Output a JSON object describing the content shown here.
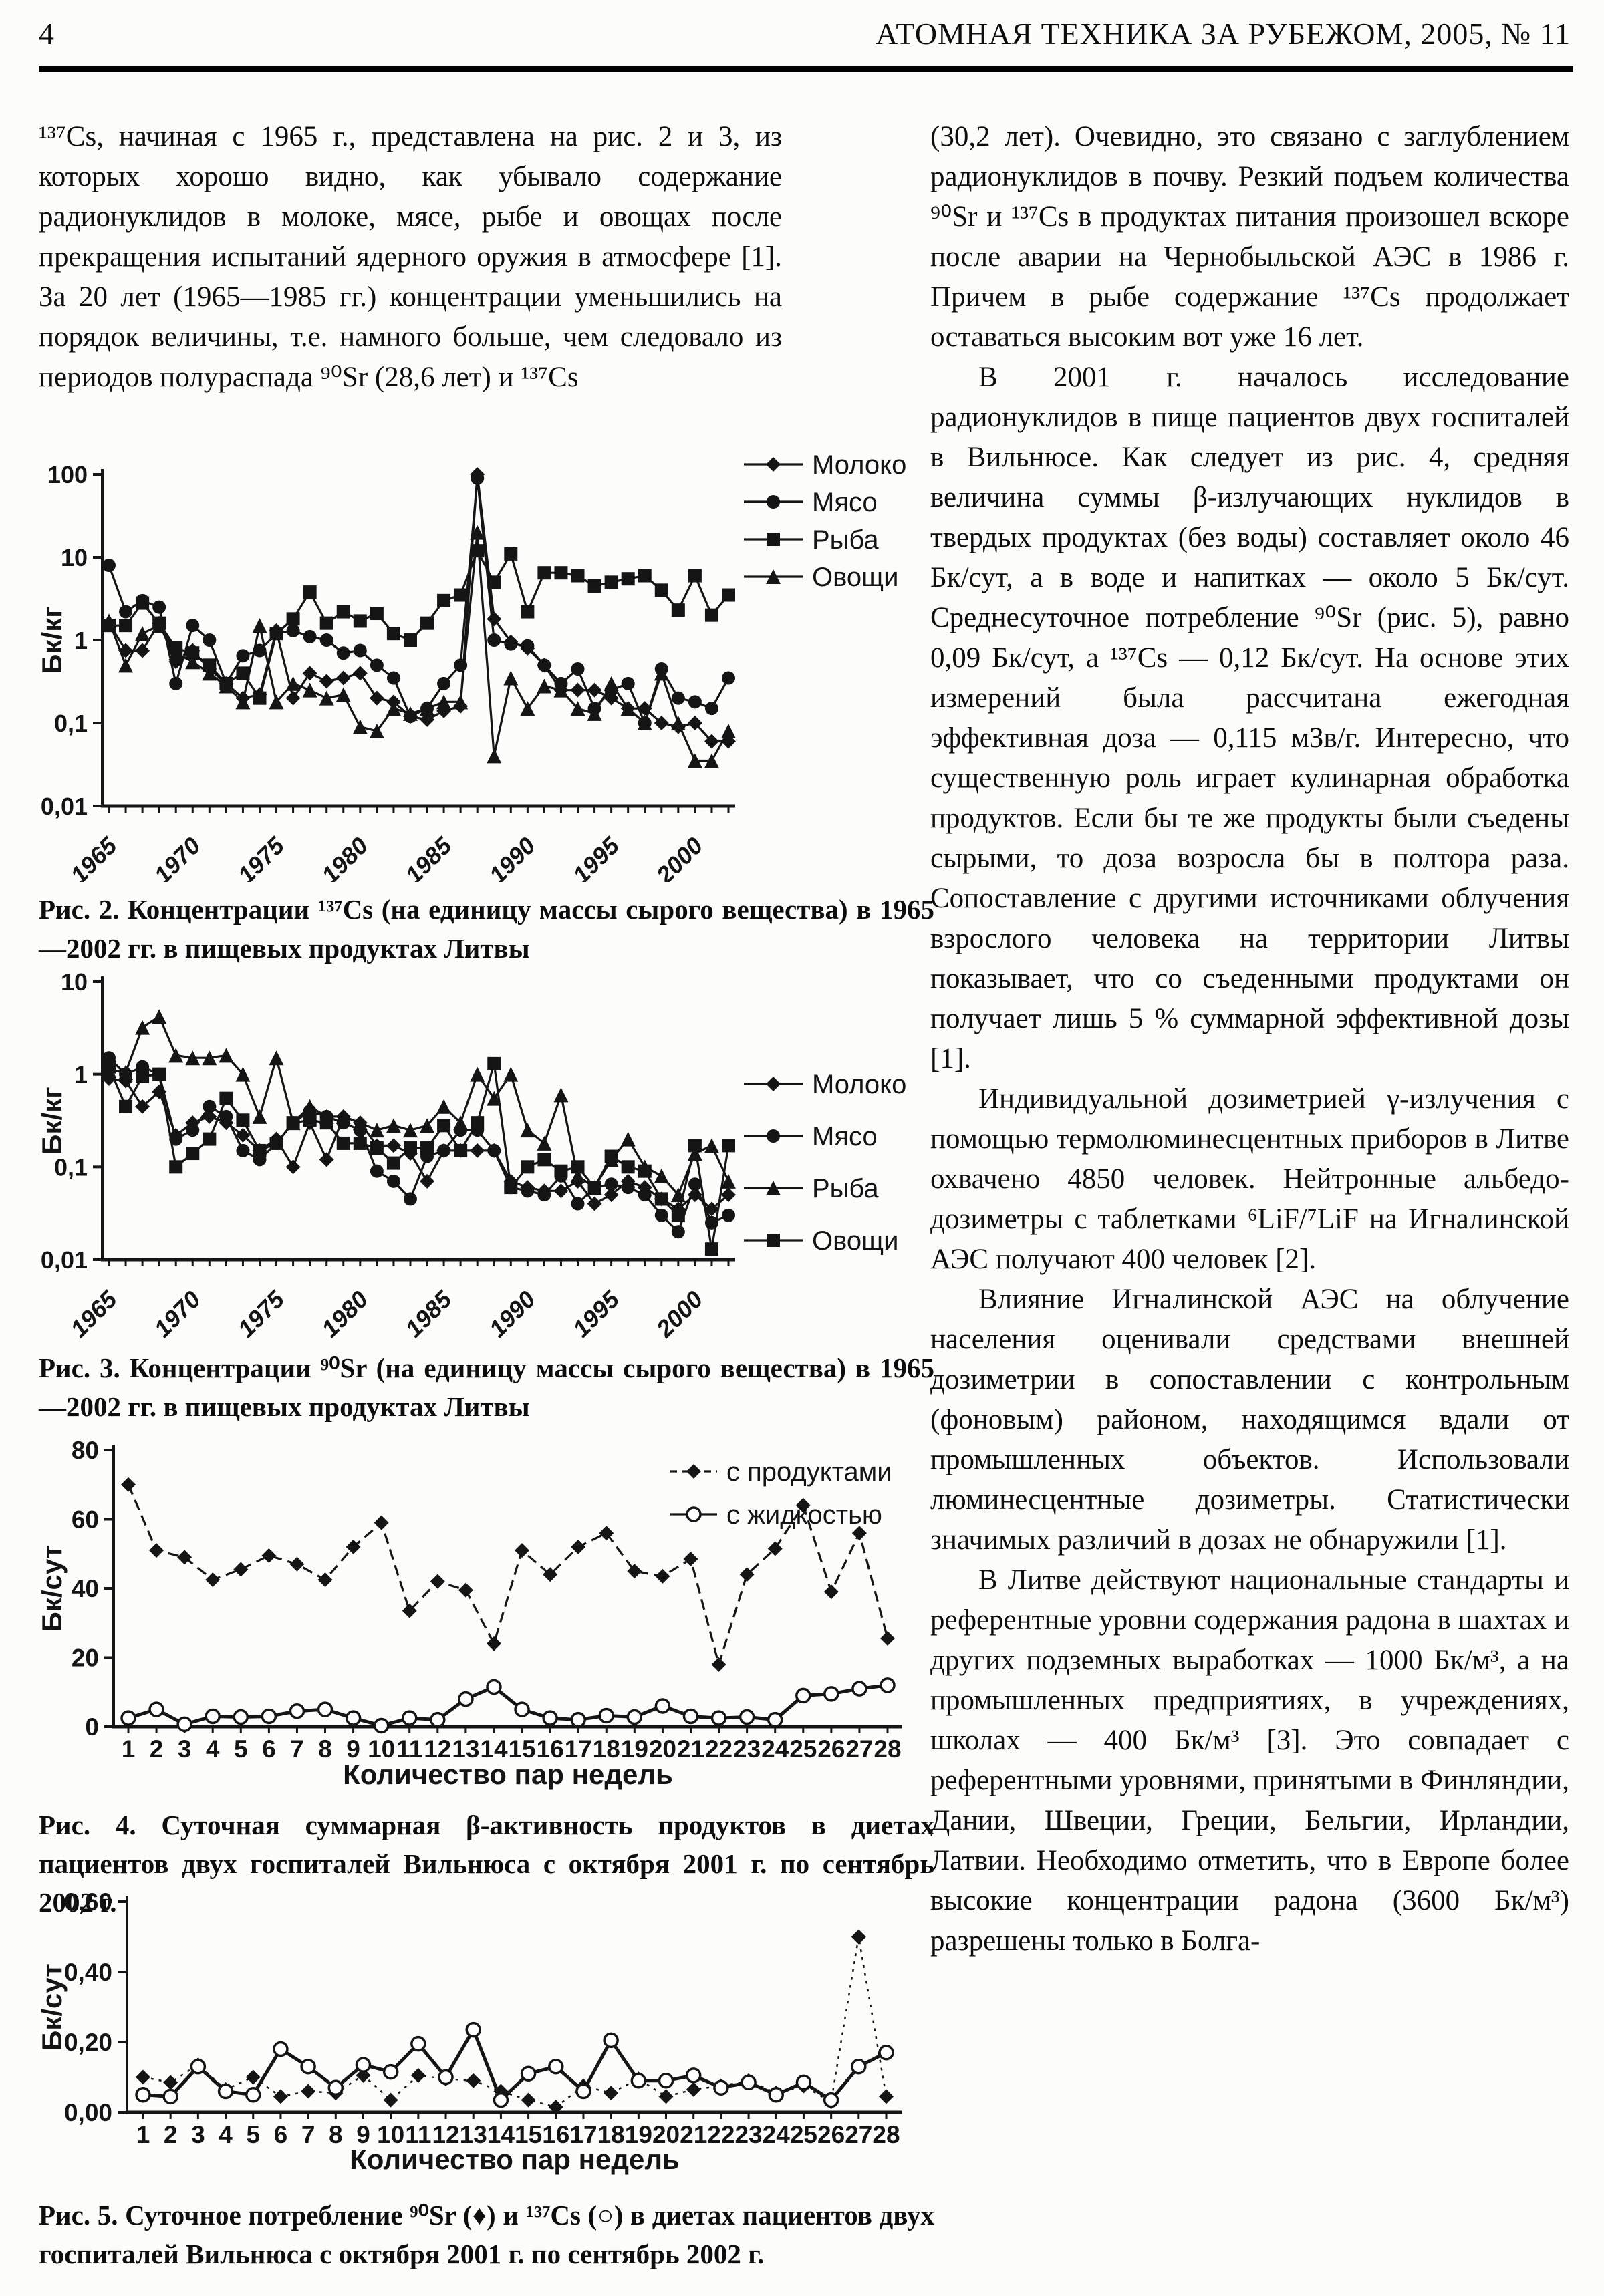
{
  "header": {
    "page_number": "4",
    "journal_title": "АТОМНАЯ ТЕХНИКА ЗА РУБЕЖОМ, 2005, № 11"
  },
  "left_column": {
    "paragraph": "¹³⁷Cs, начиная с 1965 г., представлена на рис. 2 и 3, из которых хорошо видно, как убывало содержание радионуклидов в молоке, мясе, рыбе и овощах после прекращения испытаний ядерного оружия в атмосфере [1]. За 20 лет (1965—1985 гг.) концентрации уменьшились на порядок величины, т.е. намного больше, чем следовало из периодов полураспада ⁹⁰Sr (28,6 лет) и ¹³⁷Cs"
  },
  "right_column": {
    "paragraphs": [
      "(30,2 лет). Очевидно, это связано с заглублением радионуклидов в почву. Резкий подъем количества ⁹⁰Sr и ¹³⁷Cs в продуктах питания произошел вскоре после аварии на Чернобыльской АЭС в 1986 г. Причем в рыбе содержание ¹³⁷Cs продолжает оставаться высоким вот уже 16 лет.",
      "В 2001 г. началось исследование радионуклидов в пище пациентов двух госпиталей в Вильнюсе. Как следует из рис. 4, средняя величина суммы β-излучающих нуклидов в твердых продуктах (без воды) составляет около 46 Бк/сут, а в воде и напитках — около 5 Бк/сут. Среднесуточное потребление ⁹⁰Sr (рис. 5), равно 0,09 Бк/сут, а ¹³⁷Cs — 0,12 Бк/сут. На основе этих измерений была рассчитана ежегодная эффективная доза — 0,115 мЗв/г. Интересно, что существенную роль играет кулинарная обработка продуктов. Если бы те же продукты были съедены сырыми, то доза возросла бы в полтора раза. Сопоставление с другими источниками облучения взрослого человека на территории Литвы показывает, что со съеденными продуктами он получает лишь 5 % суммарной эффективной дозы [1].",
      "Индивидуальной дозиметрией γ-излучения с помощью термолюминесцентных приборов в Литве охвачено 4850 человек. Нейтронные альбедо-дозиметры с таблетками ⁶LiF/⁷LiF на Игналинской АЭС получают 400 человек [2].",
      "Влияние Игналинской АЭС на облучение населения оценивали средствами внешней дозиметрии в сопоставлении с контрольным (фоновым) районом, находящимся вдали от промышленных объектов. Использовали люминесцентные дозиметры. Статистически значимых различий в дозах не обнаружили [1].",
      "В Литве действуют национальные стандарты и референтные уровни содержания радона в шахтах и других подземных выработках — 1000 Бк/м³, а на промышленных предприятиях, в учреждениях, школах — 400 Бк/м³ [3]. Это совпадает с референтными уровнями, принятыми в Финляндии, Дании, Швеции, Греции, Бельгии, Ирландии, Латвии. Необходимо отметить, что в Европе более высокие концентрации радона (3600 Бк/м³) разрешены только в Болга-"
    ]
  },
  "figures": {
    "fig2": {
      "caption": "Рис. 2. Концентрации ¹³⁷Cs (на единицу массы сырого вещества) в 1965—2002 гг. в пищевых продуктах Литвы"
    },
    "fig3": {
      "caption": "Рис. 3. Концентрации ⁹⁰Sr (на единицу массы сырого вещества) в 1965—2002 гг. в пищевых продуктах Литвы"
    },
    "fig4": {
      "caption": "Рис. 4. Суточная суммарная β-активность продуктов в диетах пациентов двух госпиталей Вильнюса с октября 2001 г. по сентябрь 2002 г."
    },
    "fig5": {
      "caption": "Рис. 5. Суточное потребление ⁹⁰Sr (♦) и ¹³⁷Cs (○) в диетах пациентов двух госпиталей Вильнюса с октября 2001 г. по сентябрь 2002 г."
    }
  },
  "chart_data": [
    {
      "id": "fig2",
      "type": "line",
      "title": "",
      "xlabel": "",
      "ylabel": "Бк/кг",
      "yscale": "log",
      "ylim": [
        0.01,
        100
      ],
      "yticks": [
        {
          "v": 100,
          "label": "100"
        },
        {
          "v": 10,
          "label": "10"
        },
        {
          "v": 1,
          "label": "1"
        },
        {
          "v": 0.1,
          "label": "0,1"
        },
        {
          "v": 0.01,
          "label": "0,01"
        }
      ],
      "x": [
        1965,
        1966,
        1967,
        1968,
        1969,
        1970,
        1971,
        1972,
        1973,
        1974,
        1975,
        1976,
        1977,
        1978,
        1979,
        1980,
        1981,
        1982,
        1983,
        1984,
        1985,
        1986,
        1987,
        1988,
        1989,
        1990,
        1991,
        1992,
        1993,
        1994,
        1995,
        1996,
        1997,
        1998,
        1999,
        2000,
        2001,
        2002
      ],
      "xticks": [
        1965,
        1970,
        1975,
        1980,
        1985,
        1990,
        1995,
        2000
      ],
      "xtick_rotation": -45,
      "legend_position": "right-top",
      "grid": false,
      "series": [
        {
          "name": "Молоко",
          "marker": "diamond",
          "dash": "",
          "values": [
            1.6,
            0.75,
            0.75,
            1.6,
            0.55,
            0.75,
            0.45,
            0.3,
            0.2,
            0.22,
            1.3,
            0.2,
            0.4,
            0.32,
            0.35,
            0.4,
            0.2,
            0.18,
            0.12,
            0.11,
            0.14,
            0.16,
            100,
            1.8,
            0.95,
            0.8,
            0.5,
            0.25,
            0.25,
            0.25,
            0.2,
            0.15,
            0.15,
            0.1,
            0.09,
            0.1,
            0.06,
            0.06
          ]
        },
        {
          "name": "Мясо",
          "marker": "circle",
          "dash": "",
          "values": [
            8,
            2.2,
            3,
            2.5,
            0.3,
            1.5,
            1,
            0.3,
            0.65,
            0.75,
            1.2,
            1.3,
            1.1,
            1,
            0.7,
            0.75,
            0.5,
            0.35,
            0.12,
            0.15,
            0.3,
            0.5,
            90,
            1,
            0.9,
            0.85,
            0.5,
            0.3,
            0.45,
            0.15,
            0.25,
            0.3,
            0.1,
            0.45,
            0.2,
            0.18,
            0.15,
            0.35
          ]
        },
        {
          "name": "Рыба",
          "marker": "square",
          "dash": "",
          "values": [
            1.5,
            1.5,
            2.8,
            1.6,
            0.8,
            0.7,
            0.5,
            0.3,
            0.4,
            0.2,
            1.2,
            1.8,
            3.8,
            1.6,
            2.2,
            1.7,
            2.1,
            1.2,
            1,
            1.6,
            3,
            3.5,
            12,
            5,
            11,
            2.2,
            6.5,
            6.5,
            6,
            4.5,
            5,
            5.5,
            6,
            4,
            2.3,
            6,
            2,
            3.5
          ]
        },
        {
          "name": "Овощи",
          "marker": "triangle",
          "dash": "",
          "values": [
            1.7,
            0.5,
            1.2,
            1.5,
            0.7,
            0.55,
            0.4,
            0.28,
            0.18,
            1.5,
            0.18,
            0.3,
            0.25,
            0.2,
            0.22,
            0.09,
            0.08,
            0.15,
            0.13,
            0.15,
            0.18,
            0.18,
            20,
            0.04,
            0.35,
            0.15,
            0.28,
            0.25,
            0.15,
            0.13,
            0.3,
            0.15,
            0.1,
            0.4,
            0.1,
            0.035,
            0.035,
            0.08
          ]
        }
      ]
    },
    {
      "id": "fig3",
      "type": "line",
      "title": "",
      "xlabel": "",
      "ylabel": "Бк/кг",
      "yscale": "log",
      "ylim": [
        0.01,
        10
      ],
      "yticks": [
        {
          "v": 10,
          "label": "10"
        },
        {
          "v": 1,
          "label": "1"
        },
        {
          "v": 0.1,
          "label": "0,1"
        },
        {
          "v": 0.01,
          "label": "0,01"
        }
      ],
      "x": [
        1965,
        1966,
        1967,
        1968,
        1969,
        1970,
        1971,
        1972,
        1973,
        1974,
        1975,
        1976,
        1977,
        1978,
        1979,
        1980,
        1981,
        1982,
        1983,
        1984,
        1985,
        1986,
        1987,
        1988,
        1989,
        1990,
        1991,
        1992,
        1993,
        1994,
        1995,
        1996,
        1997,
        1998,
        1999,
        2000,
        2001,
        2002
      ],
      "xticks": [
        1965,
        1970,
        1975,
        1980,
        1985,
        1990,
        1995,
        2000
      ],
      "xtick_rotation": -45,
      "legend_position": "right-middle",
      "grid": false,
      "series": [
        {
          "name": "Молоко",
          "marker": "diamond",
          "dash": "",
          "values": [
            0.9,
            0.85,
            0.45,
            0.65,
            0.22,
            0.3,
            0.35,
            0.3,
            0.22,
            0.15,
            0.2,
            0.1,
            0.3,
            0.12,
            0.35,
            0.3,
            0.17,
            0.17,
            0.14,
            0.07,
            0.15,
            0.15,
            0.15,
            0.15,
            0.07,
            0.06,
            0.055,
            0.055,
            0.07,
            0.04,
            0.05,
            0.07,
            0.06,
            0.045,
            0.035,
            0.05,
            0.035,
            0.05
          ]
        },
        {
          "name": "Мясо",
          "marker": "circle",
          "dash": "",
          "values": [
            1.5,
            1,
            1.2,
            1,
            0.2,
            0.25,
            0.45,
            0.35,
            0.15,
            0.12,
            0.18,
            0.3,
            0.4,
            0.35,
            0.3,
            0.25,
            0.09,
            0.07,
            0.045,
            0.13,
            0.15,
            0.25,
            0.25,
            0.15,
            0.06,
            0.055,
            0.05,
            0.08,
            0.04,
            0.06,
            0.065,
            0.06,
            0.05,
            0.03,
            0.02,
            0.065,
            0.025,
            0.03
          ]
        },
        {
          "name": "Рыба",
          "marker": "triangle",
          "dash": "",
          "values": [
            1.1,
            1.05,
            3.2,
            4.2,
            1.6,
            1.5,
            1.5,
            1.6,
            1,
            0.35,
            1.5,
            0.3,
            0.45,
            0.35,
            0.35,
            0.3,
            0.25,
            0.28,
            0.25,
            0.28,
            0.45,
            0.3,
            1,
            0.55,
            1,
            0.25,
            0.18,
            0.6,
            0.08,
            0.06,
            0.12,
            0.2,
            0.1,
            0.08,
            0.05,
            0.14,
            0.17,
            0.07
          ]
        },
        {
          "name": "Овощи",
          "marker": "square",
          "dash": "",
          "values": [
            1.2,
            0.45,
            0.95,
            1,
            0.1,
            0.14,
            0.2,
            0.55,
            0.32,
            0.15,
            0.18,
            0.3,
            0.32,
            0.3,
            0.18,
            0.18,
            0.16,
            0.11,
            0.16,
            0.16,
            0.28,
            0.15,
            0.3,
            1.3,
            0.06,
            0.1,
            0.12,
            0.09,
            0.1,
            0.06,
            0.13,
            0.1,
            0.09,
            0.045,
            0.03,
            0.17,
            0.013,
            0.17
          ]
        }
      ]
    },
    {
      "id": "fig4",
      "type": "line",
      "title": "",
      "xlabel": "Количество пар недель",
      "ylabel": "Бк/сут",
      "yscale": "linear",
      "ylim": [
        0,
        80
      ],
      "yticks": [
        {
          "v": 0,
          "label": "0"
        },
        {
          "v": 20,
          "label": "20"
        },
        {
          "v": 40,
          "label": "40"
        },
        {
          "v": 60,
          "label": "60"
        },
        {
          "v": 80,
          "label": "80"
        }
      ],
      "x": [
        1,
        2,
        3,
        4,
        5,
        6,
        7,
        8,
        9,
        10,
        11,
        12,
        13,
        14,
        15,
        16,
        17,
        18,
        19,
        20,
        21,
        22,
        23,
        24,
        25,
        26,
        27,
        28
      ],
      "xticks": [
        1,
        2,
        3,
        4,
        5,
        6,
        7,
        8,
        9,
        10,
        11,
        12,
        13,
        14,
        15,
        16,
        17,
        18,
        19,
        20,
        21,
        22,
        23,
        24,
        25,
        26,
        27,
        28
      ],
      "xtick_rotation": 0,
      "legend_position": "inside-top-right",
      "grid": false,
      "series": [
        {
          "name": "с продуктами",
          "marker": "diamond",
          "dash": "16,9",
          "values": [
            70,
            51,
            49,
            42.5,
            45.5,
            49.5,
            47,
            42.5,
            52,
            59,
            33.5,
            42,
            39.5,
            24,
            51,
            44,
            52,
            56,
            45,
            43.5,
            48.5,
            18,
            44,
            51.5,
            64,
            39,
            56,
            25.5
          ]
        },
        {
          "name": "с жидкостью",
          "marker": "circle-open",
          "dash": "",
          "width": 5,
          "values": [
            2.5,
            5,
            0.7,
            3,
            2.8,
            3,
            4.5,
            5,
            2.5,
            0.3,
            2.5,
            2,
            8,
            11.5,
            5,
            2.5,
            2,
            3.2,
            2.8,
            6,
            3,
            2.5,
            2.8,
            2,
            9,
            9.5,
            11,
            12
          ]
        }
      ]
    },
    {
      "id": "fig5",
      "type": "line",
      "title": "",
      "xlabel": "Количество пар недель",
      "ylabel": "Бк/сут",
      "yscale": "linear",
      "ylim": [
        0,
        0.6
      ],
      "yticks": [
        {
          "v": 0,
          "label": "0,00"
        },
        {
          "v": 0.2,
          "label": "0,20"
        },
        {
          "v": 0.4,
          "label": "0,40"
        },
        {
          "v": 0.6,
          "label": "0,60"
        }
      ],
      "x": [
        1,
        2,
        3,
        4,
        5,
        6,
        7,
        8,
        9,
        10,
        11,
        12,
        13,
        14,
        15,
        16,
        17,
        18,
        19,
        20,
        21,
        22,
        23,
        24,
        25,
        26,
        27,
        28
      ],
      "xticks": [
        1,
        2,
        3,
        4,
        5,
        6,
        7,
        8,
        9,
        10,
        11,
        12,
        13,
        14,
        15,
        16,
        17,
        18,
        19,
        20,
        21,
        22,
        23,
        24,
        25,
        26,
        27,
        28
      ],
      "xtick_rotation": 0,
      "legend_position": "none",
      "grid": false,
      "series": [
        {
          "name": "⁹⁰Sr",
          "marker": "diamond",
          "dash": "4,8",
          "width": 2.5,
          "values": [
            0.1,
            0.085,
            0.135,
            0.065,
            0.1,
            0.045,
            0.06,
            0.055,
            0.105,
            0.035,
            0.105,
            0.095,
            0.09,
            0.06,
            0.035,
            0.015,
            0.075,
            0.055,
            0.095,
            0.045,
            0.065,
            0.075,
            0.09,
            0.055,
            0.075,
            0.03,
            0.5,
            0.045
          ]
        },
        {
          "name": "¹³⁷Cs",
          "marker": "circle-open",
          "dash": "",
          "width": 5,
          "values": [
            0.05,
            0.045,
            0.13,
            0.06,
            0.05,
            0.18,
            0.13,
            0.07,
            0.135,
            0.115,
            0.195,
            0.1,
            0.235,
            0.035,
            0.11,
            0.13,
            0.06,
            0.205,
            0.09,
            0.09,
            0.105,
            0.07,
            0.085,
            0.05,
            0.085,
            0.035,
            0.13,
            0.17
          ]
        }
      ]
    }
  ]
}
